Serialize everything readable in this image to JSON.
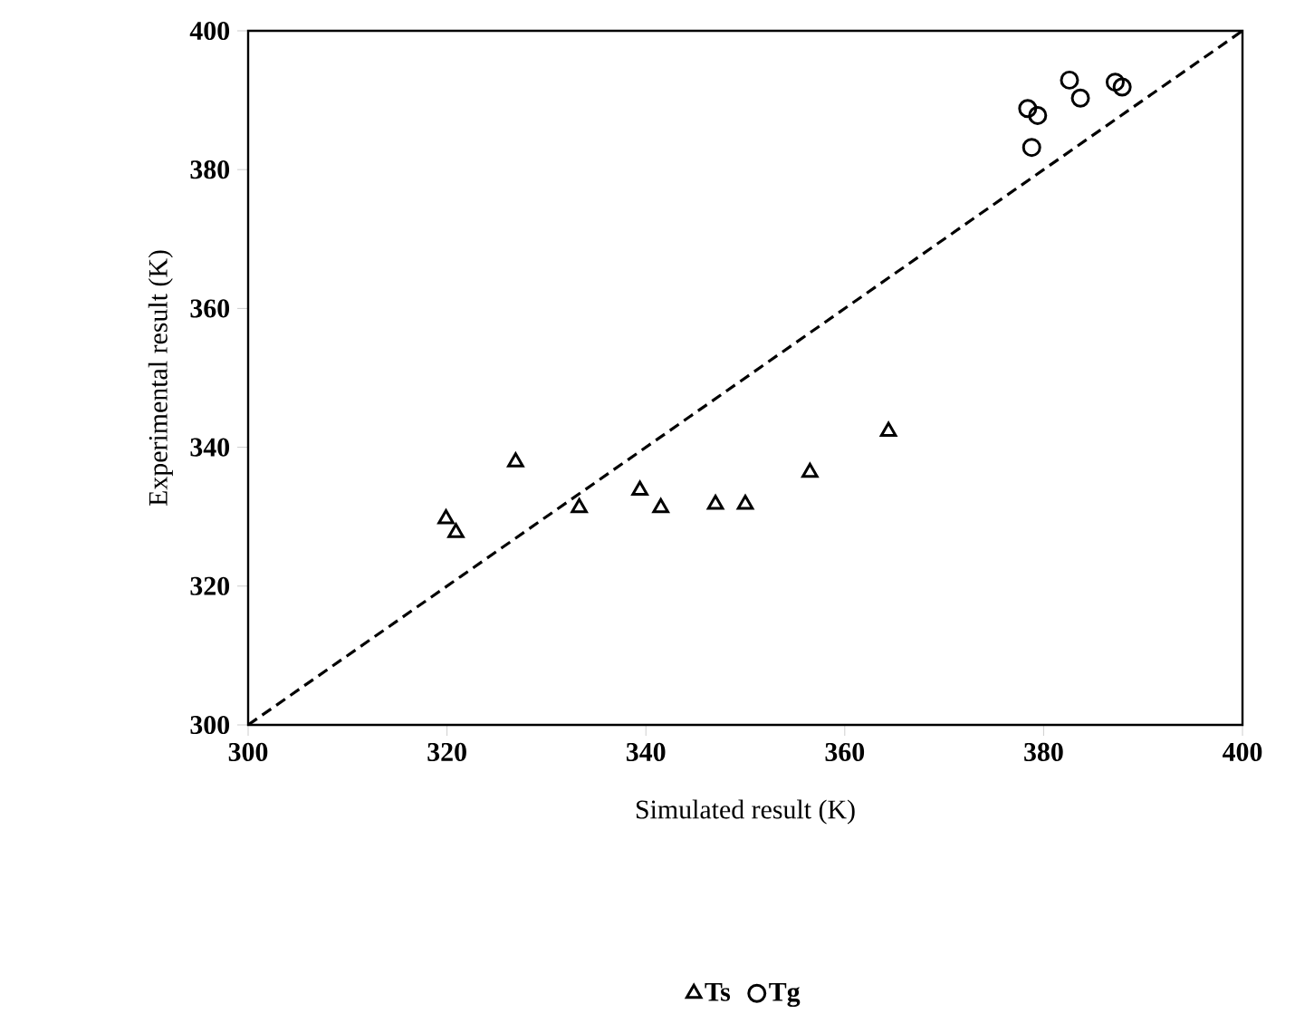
{
  "chart_data": {
    "type": "scatter",
    "xlabel": "Simulated result (K)",
    "ylabel": "Experimental result (K)",
    "xlim": [
      300,
      400
    ],
    "ylim": [
      300,
      400
    ],
    "xticks": [
      300,
      320,
      340,
      360,
      380,
      400
    ],
    "yticks": [
      300,
      320,
      340,
      360,
      380,
      400
    ],
    "grid": false,
    "legend": "bottom",
    "series": [
      {
        "name": "Ts",
        "color": "#000000",
        "marker": "triangle",
        "x": [
          319.9,
          320.9,
          326.9,
          333.3,
          339.4,
          341.5,
          347.0,
          350.0,
          356.5,
          364.4
        ],
        "values": [
          329.7,
          327.7,
          337.9,
          331.3,
          333.8,
          331.3,
          331.8,
          331.8,
          336.4,
          342.3
        ]
      },
      {
        "name": "Tg",
        "color": "#000000",
        "marker": "circle",
        "x": [
          378.4,
          379.4,
          382.6,
          383.7,
          387.2,
          387.9,
          378.8
        ],
        "values": [
          388.8,
          387.8,
          392.9,
          390.3,
          392.6,
          391.9,
          383.2
        ]
      },
      {
        "type": "line",
        "line_style": "dashed",
        "color": "#000000",
        "marker": "none",
        "x": [
          300,
          400
        ],
        "values": [
          300,
          400
        ]
      }
    ]
  }
}
